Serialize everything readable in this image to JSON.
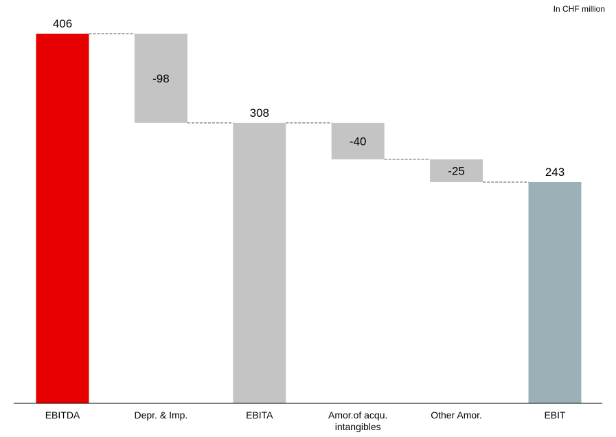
{
  "unit_note": "In CHF million",
  "chart_data": {
    "type": "bar",
    "subtype": "waterfall",
    "categories": [
      "EBITDA",
      "Depr. & Imp.",
      "EBITA",
      "Amor.of acqu. intangibles",
      "Other Amor.",
      "EBIT"
    ],
    "category_lines": [
      [
        "EBITDA"
      ],
      [
        "Depr. & Imp."
      ],
      [
        "EBITA"
      ],
      [
        "Amor.of acqu.",
        "intangibles"
      ],
      [
        "Other Amor."
      ],
      [
        "EBIT"
      ]
    ],
    "values": [
      406,
      -98,
      308,
      -40,
      -25,
      243
    ],
    "value_labels": [
      "406",
      "-98",
      "308",
      "-40",
      "-25",
      "243"
    ],
    "kinds": [
      "total",
      "delta",
      "total",
      "delta",
      "delta",
      "total"
    ],
    "colors": [
      "#e60000",
      "#c4c4c4",
      "#c4c4c4",
      "#c4c4c4",
      "#c4c4c4",
      "#9cb0b8"
    ],
    "connector_style": "dashed",
    "gridlines": false,
    "legend": "none",
    "ylim": [
      0,
      406
    ]
  }
}
